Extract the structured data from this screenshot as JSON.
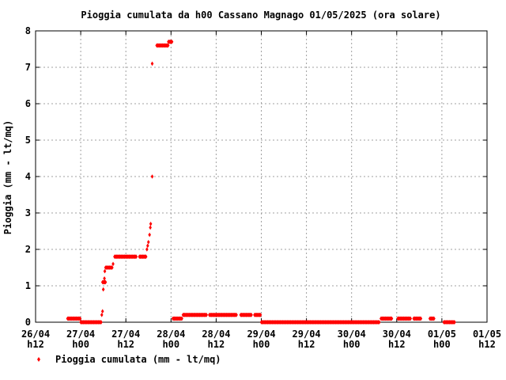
{
  "chart_data": {
    "type": "scatter",
    "title": "Pioggia cumulata da h00 Cassano Magnago 01/05/2025 (ora solare)",
    "xlabel": "",
    "ylabel": "Pioggia (mm - lt/mq)",
    "ylim": [
      0,
      8
    ],
    "y_ticks": [
      0,
      1,
      2,
      3,
      4,
      5,
      6,
      7,
      8
    ],
    "xlim": [
      0,
      120
    ],
    "x_ticks": [
      {
        "x": 0,
        "date": "26/04",
        "hour": "h12"
      },
      {
        "x": 12,
        "date": "27/04",
        "hour": "h00"
      },
      {
        "x": 24,
        "date": "27/04",
        "hour": "h12"
      },
      {
        "x": 36,
        "date": "28/04",
        "hour": "h00"
      },
      {
        "x": 48,
        "date": "28/04",
        "hour": "h12"
      },
      {
        "x": 60,
        "date": "29/04",
        "hour": "h00"
      },
      {
        "x": 72,
        "date": "29/04",
        "hour": "h12"
      },
      {
        "x": 84,
        "date": "30/04",
        "hour": "h00"
      },
      {
        "x": 96,
        "date": "30/04",
        "hour": "h12"
      },
      {
        "x": 108,
        "date": "01/05",
        "hour": "h00"
      },
      {
        "x": 120,
        "date": "01/05",
        "hour": "h12"
      }
    ],
    "grid": true,
    "legend_position": "bottom-left",
    "series": [
      {
        "name": "Pioggia cumulata (mm - lt/mq)",
        "color": "#ff0000",
        "marker": "diamond",
        "segments": [
          {
            "x0": 8.5,
            "x1": 12.0,
            "y": 0.1
          },
          {
            "x0": 12.0,
            "x1": 17.5,
            "y": 0.0
          },
          {
            "x0": 17.8,
            "x1": 18.6,
            "y": 1.1
          },
          {
            "x0": 18.6,
            "x1": 20.4,
            "y": 1.5
          },
          {
            "x0": 21.0,
            "x1": 26.8,
            "y": 1.8
          },
          {
            "x0": 27.6,
            "x1": 29.4,
            "y": 1.8
          },
          {
            "x0": 32.2,
            "x1": 35.3,
            "y": 7.6
          },
          {
            "x0": 35.3,
            "x1": 36.4,
            "y": 7.7
          },
          {
            "x0": 36.5,
            "x1": 39.0,
            "y": 0.1
          },
          {
            "x0": 39.2,
            "x1": 45.5,
            "y": 0.2
          },
          {
            "x0": 46.2,
            "x1": 53.5,
            "y": 0.2
          },
          {
            "x0": 54.5,
            "x1": 57.5,
            "y": 0.2
          },
          {
            "x0": 58.2,
            "x1": 59.8,
            "y": 0.2
          },
          {
            "x0": 60.0,
            "x1": 91.5,
            "y": 0.0
          },
          {
            "x0": 91.8,
            "x1": 94.8,
            "y": 0.1
          },
          {
            "x0": 96.3,
            "x1": 99.8,
            "y": 0.1
          },
          {
            "x0": 100.5,
            "x1": 102.5,
            "y": 0.1
          },
          {
            "x0": 104.8,
            "x1": 106.0,
            "y": 0.1
          },
          {
            "x0": 108.5,
            "x1": 111.5,
            "y": 0.0
          }
        ],
        "points": [
          {
            "x": 17.6,
            "y": 0.2
          },
          {
            "x": 17.8,
            "y": 0.3
          },
          {
            "x": 18.0,
            "y": 0.9
          },
          {
            "x": 18.3,
            "y": 1.2
          },
          {
            "x": 18.4,
            "y": 1.4
          },
          {
            "x": 20.6,
            "y": 1.6
          },
          {
            "x": 29.6,
            "y": 2.0
          },
          {
            "x": 29.8,
            "y": 2.1
          },
          {
            "x": 30.0,
            "y": 2.2
          },
          {
            "x": 30.3,
            "y": 2.4
          },
          {
            "x": 30.5,
            "y": 2.6
          },
          {
            "x": 30.6,
            "y": 2.7
          },
          {
            "x": 31.0,
            "y": 4.0
          },
          {
            "x": 31.0,
            "y": 7.1
          }
        ]
      }
    ]
  }
}
